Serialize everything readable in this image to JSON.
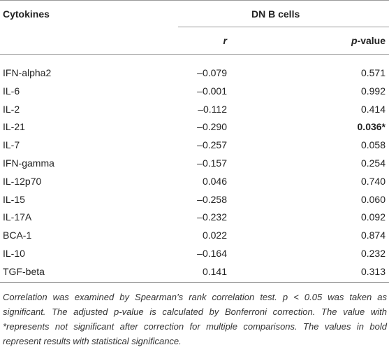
{
  "table": {
    "header": {
      "cytokines": "Cytokines",
      "group": "DN B cells",
      "r": "r",
      "p_italic": "p",
      "p_rest": "-value"
    },
    "rows": [
      [
        "IFN-alpha2",
        "–0.079",
        "0.571"
      ],
      [
        "IL-6",
        "–0.001",
        "0.992"
      ],
      [
        "IL-2",
        "–0.112",
        "0.414"
      ],
      [
        "IL-21",
        "–0.290",
        "0.036*"
      ],
      [
        "IL-7",
        "–0.257",
        "0.058"
      ],
      [
        "IFN-gamma",
        "–0.157",
        "0.254"
      ],
      [
        "IL-12p70",
        "0.046",
        "0.740"
      ],
      [
        "IL-15",
        "–0.258",
        "0.060"
      ],
      [
        "IL-17A",
        "–0.232",
        "0.092"
      ],
      [
        "BCA-1",
        "0.022",
        "0.874"
      ],
      [
        "IL-10",
        "–0.164",
        "0.232"
      ],
      [
        "TGF-beta",
        "0.141",
        "0.313"
      ]
    ],
    "bold_cells": [
      [
        3,
        2
      ]
    ]
  },
  "footnote": "Correlation was examined by Spearman’s rank correlation test. p < 0.05 was taken as significant. The adjusted p-value is calculated by Bonferroni correction. The value with *represents not significant after correction for multiple comparisons. The values in bold represent results with statistical significance."
}
